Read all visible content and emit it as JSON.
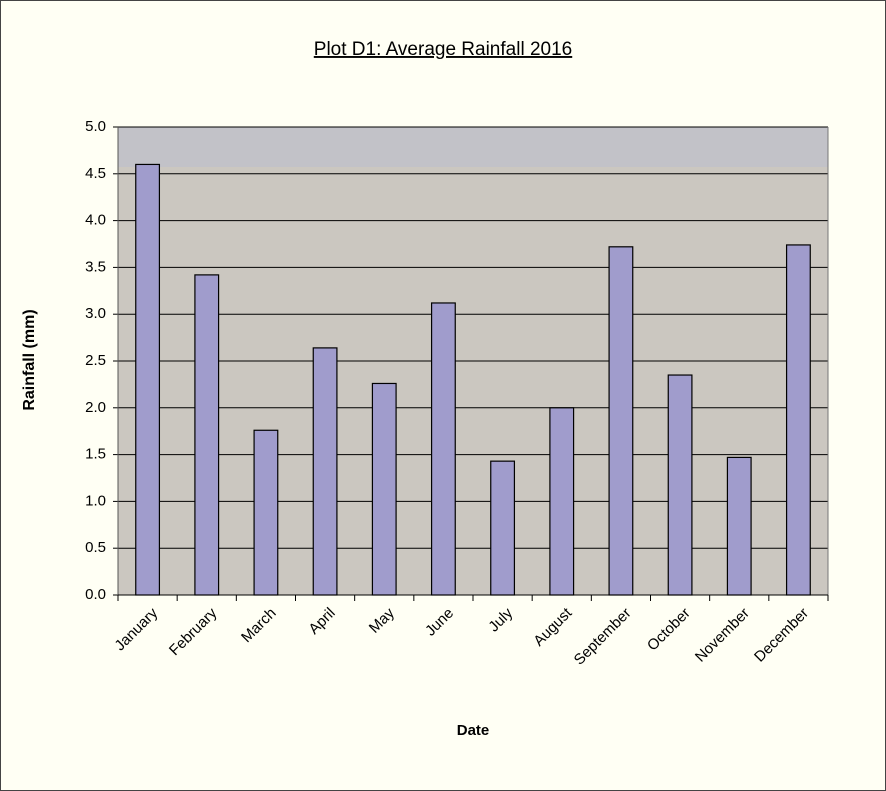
{
  "chart_data": {
    "type": "bar",
    "title": "Plot D1: Average Rainfall 2016",
    "x_label": "Date",
    "y_label": "Rainfall (mm)",
    "categories": [
      "January",
      "February",
      "March",
      "April",
      "May",
      "June",
      "July",
      "August",
      "September",
      "October",
      "November",
      "December"
    ],
    "values": [
      4.6,
      3.42,
      1.76,
      2.64,
      2.26,
      3.12,
      1.43,
      2.0,
      3.72,
      2.35,
      1.47,
      3.74
    ],
    "color": "#a09ccc",
    "ylim": [
      0,
      5
    ],
    "yticks": [
      {
        "value": 0,
        "label": "0.0"
      },
      0.5,
      {
        "value": 1,
        "label": "1.0"
      },
      1.5,
      {
        "value": 2,
        "label": "2.0"
      },
      2.5,
      {
        "value": 3,
        "label": "3.0"
      },
      3.5,
      {
        "value": 4,
        "label": "4.0"
      },
      4.5,
      {
        "value": 5,
        "label": "5.0"
      }
    ],
    "grid": true
  }
}
